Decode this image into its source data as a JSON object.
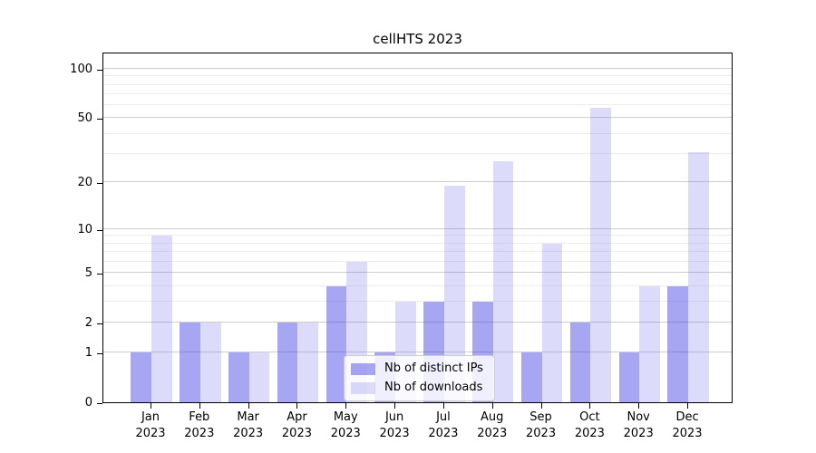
{
  "title": "cellHTS 2023",
  "chart_data": {
    "type": "bar",
    "title": "cellHTS 2023",
    "xlabel": "",
    "ylabel": "",
    "y_scale": "log1p",
    "ylim": [
      0,
      127
    ],
    "grid": "on",
    "legend_position": "bottom-center",
    "y_major_ticks": [
      0,
      1,
      2,
      5,
      10,
      20,
      50,
      100
    ],
    "y_minor_gridlines": [
      3,
      4,
      6,
      7,
      8,
      9,
      30,
      40,
      60,
      70,
      80,
      90
    ],
    "categories": [
      "Jan 2023",
      "Feb 2023",
      "Mar 2023",
      "Apr 2023",
      "May 2023",
      "Jun 2023",
      "Jul 2023",
      "Aug 2023",
      "Sep 2023",
      "Oct 2023",
      "Nov 2023",
      "Dec 2023"
    ],
    "series": [
      {
        "name": "Nb of distinct IPs",
        "color": "rgba(58,58,226,0.45)",
        "solid_hex": "#a6a6f2",
        "values": [
          1,
          2,
          1,
          2,
          4,
          1,
          3,
          3,
          1,
          2,
          1,
          4
        ]
      },
      {
        "name": "Nb of downloads",
        "color": "rgba(116,116,236,0.25)",
        "solid_hex": "#dcdcfa",
        "values": [
          9,
          2,
          1,
          2,
          6,
          3,
          19,
          27,
          8,
          58,
          4,
          31
        ]
      }
    ]
  },
  "legend": {
    "items": [
      {
        "label": "Nb of distinct IPs"
      },
      {
        "label": "Nb of downloads"
      }
    ]
  },
  "colors": {
    "grid_major": "#cdcdcd",
    "grid_minor": "#ececec",
    "axis": "#000000",
    "legend_border": "#cccccc"
  }
}
